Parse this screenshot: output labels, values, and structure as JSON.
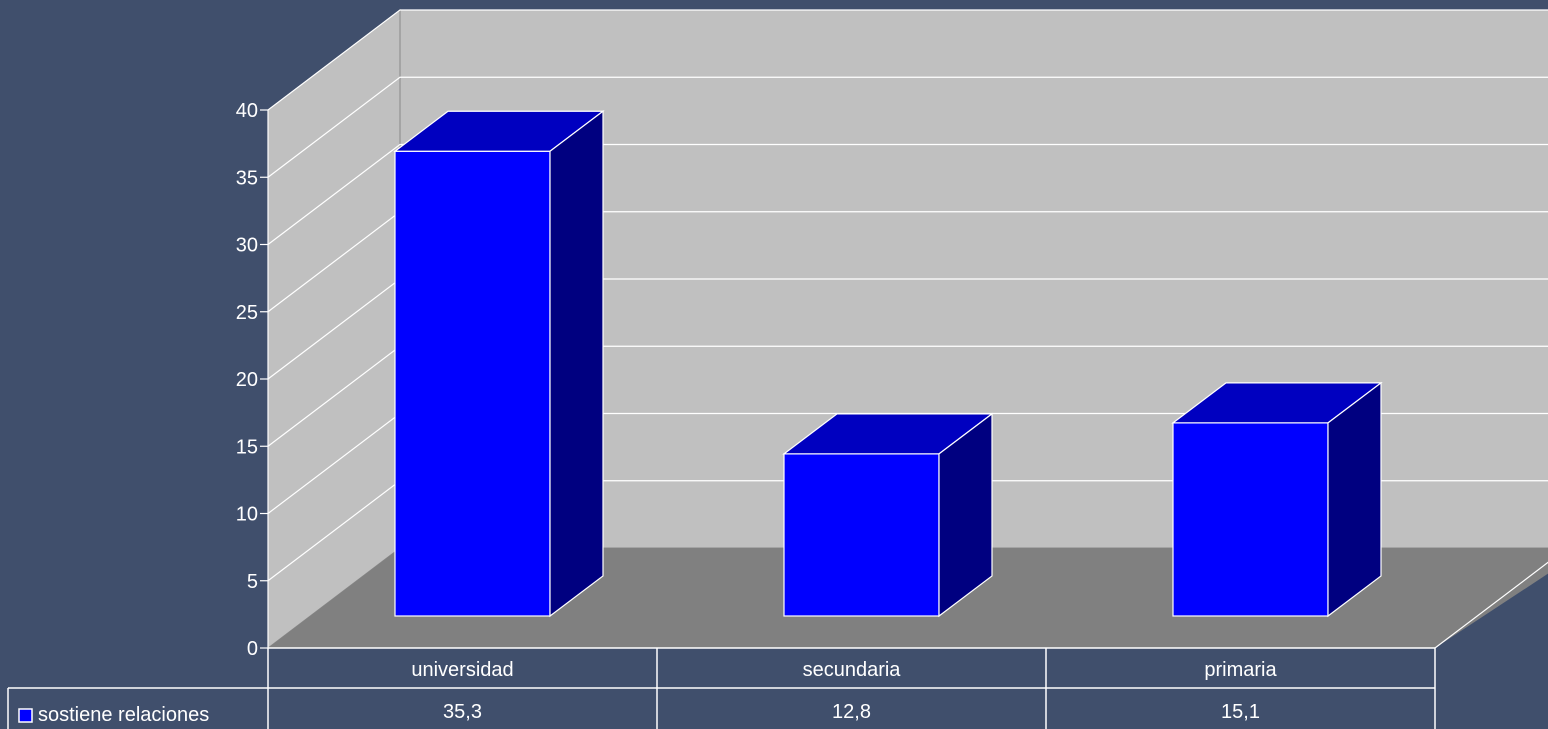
{
  "colors": {
    "background": "#404f6c",
    "wall": "#c0c0c0",
    "floor": "#808080",
    "grid": "#ffffff",
    "bar_front": "#0000ff",
    "bar_top": "#0000c0",
    "bar_side": "#000080",
    "text": "#ffffff"
  },
  "chart_data": {
    "type": "bar",
    "style": "3d",
    "categories": [
      "universidad",
      "secundaria",
      "primaria"
    ],
    "series": [
      {
        "name": "sostiene relaciones",
        "values": [
          35.3,
          12.8,
          15.1
        ],
        "value_labels": [
          "35,3",
          "12,8",
          "15,1"
        ],
        "color": "#0000ff"
      }
    ],
    "y_ticks": [
      0,
      5,
      10,
      15,
      20,
      25,
      30,
      35,
      40
    ],
    "ylim": [
      0,
      40
    ],
    "grid": true,
    "legend": "data-table-left"
  }
}
